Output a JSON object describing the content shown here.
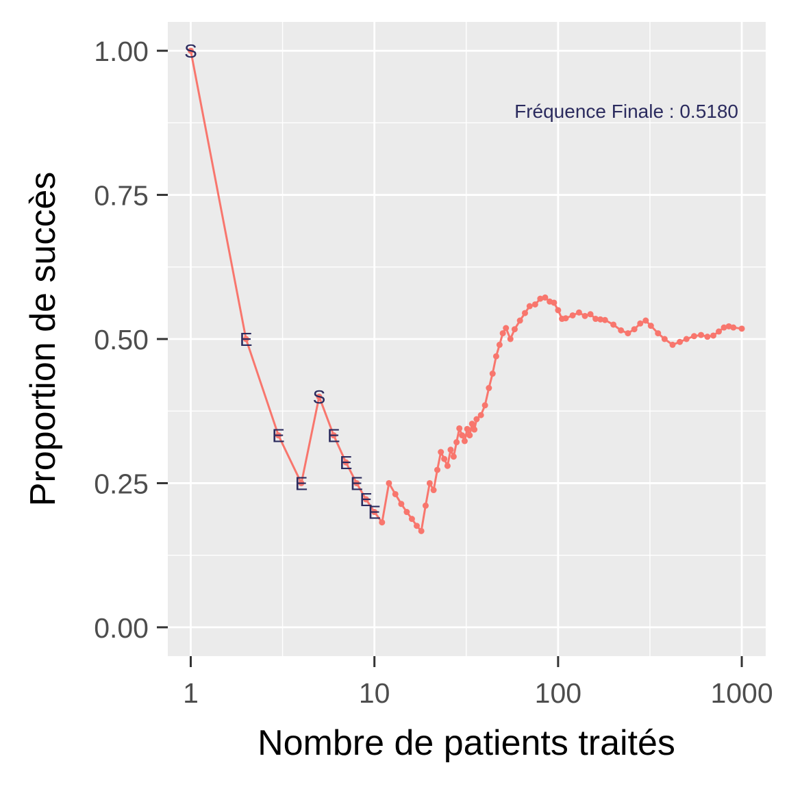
{
  "chart_data": {
    "type": "line",
    "xlabel": "Nombre de patients traités",
    "ylabel": "Proportion de succès",
    "x_scale": "log10",
    "xlim": [
      0.75,
      1350
    ],
    "ylim": [
      -0.05,
      1.05
    ],
    "x_ticks": [
      1,
      10,
      100,
      1000
    ],
    "x_tick_labels": [
      "1",
      "10",
      "100",
      "1000"
    ],
    "y_ticks": [
      0,
      0.25,
      0.5,
      0.75,
      1.0
    ],
    "y_tick_labels": [
      "0.00",
      "0.25",
      "0.50",
      "0.75",
      "1.00"
    ],
    "grid": true,
    "annotation": "Fréquence Finale :  0.5180",
    "series": [
      {
        "color": "#F8766D",
        "points": [
          [
            1,
            1.0
          ],
          [
            2,
            0.5
          ],
          [
            3,
            0.333
          ],
          [
            4,
            0.25
          ],
          [
            5,
            0.4
          ],
          [
            6,
            0.333
          ],
          [
            7,
            0.286
          ],
          [
            8,
            0.25
          ],
          [
            9,
            0.222
          ],
          [
            10,
            0.2
          ],
          [
            11,
            0.182
          ],
          [
            12,
            0.25
          ],
          [
            13,
            0.231
          ],
          [
            14,
            0.214
          ],
          [
            15,
            0.2
          ],
          [
            16,
            0.188
          ],
          [
            17,
            0.176
          ],
          [
            18,
            0.167
          ],
          [
            19,
            0.211
          ],
          [
            20,
            0.25
          ],
          [
            21,
            0.238
          ],
          [
            22,
            0.273
          ],
          [
            23,
            0.304
          ],
          [
            24,
            0.292
          ],
          [
            25,
            0.28
          ],
          [
            26,
            0.308
          ],
          [
            27,
            0.296
          ],
          [
            28,
            0.321
          ],
          [
            29,
            0.345
          ],
          [
            30,
            0.333
          ],
          [
            31,
            0.323
          ],
          [
            32,
            0.344
          ],
          [
            33,
            0.333
          ],
          [
            34,
            0.353
          ],
          [
            35,
            0.343
          ],
          [
            36,
            0.361
          ],
          [
            38,
            0.368
          ],
          [
            40,
            0.385
          ],
          [
            42,
            0.415
          ],
          [
            44,
            0.44
          ],
          [
            46,
            0.47
          ],
          [
            48,
            0.49
          ],
          [
            50,
            0.51
          ],
          [
            52,
            0.519
          ],
          [
            55,
            0.5
          ],
          [
            58,
            0.517
          ],
          [
            62,
            0.532
          ],
          [
            66,
            0.545
          ],
          [
            70,
            0.557
          ],
          [
            75,
            0.56
          ],
          [
            80,
            0.57
          ],
          [
            85,
            0.572
          ],
          [
            90,
            0.565
          ],
          [
            95,
            0.563
          ],
          [
            100,
            0.55
          ],
          [
            105,
            0.535
          ],
          [
            110,
            0.536
          ],
          [
            120,
            0.541
          ],
          [
            130,
            0.546
          ],
          [
            140,
            0.54
          ],
          [
            150,
            0.543
          ],
          [
            160,
            0.535
          ],
          [
            170,
            0.534
          ],
          [
            180,
            0.533
          ],
          [
            200,
            0.525
          ],
          [
            220,
            0.515
          ],
          [
            240,
            0.51
          ],
          [
            260,
            0.517
          ],
          [
            280,
            0.527
          ],
          [
            300,
            0.532
          ],
          [
            320,
            0.523
          ],
          [
            350,
            0.51
          ],
          [
            380,
            0.5
          ],
          [
            420,
            0.49
          ],
          [
            460,
            0.495
          ],
          [
            500,
            0.5
          ],
          [
            550,
            0.505
          ],
          [
            600,
            0.507
          ],
          [
            650,
            0.504
          ],
          [
            700,
            0.506
          ],
          [
            750,
            0.513
          ],
          [
            800,
            0.52
          ],
          [
            850,
            0.522
          ],
          [
            900,
            0.52
          ],
          [
            1000,
            0.518
          ]
        ]
      }
    ],
    "point_labels": [
      {
        "x": 1,
        "y": 1.0,
        "text": "S"
      },
      {
        "x": 2,
        "y": 0.5,
        "text": "E"
      },
      {
        "x": 3,
        "y": 0.333,
        "text": "E"
      },
      {
        "x": 4,
        "y": 0.25,
        "text": "E"
      },
      {
        "x": 5,
        "y": 0.4,
        "text": "S"
      },
      {
        "x": 6,
        "y": 0.333,
        "text": "E"
      },
      {
        "x": 7,
        "y": 0.286,
        "text": "E"
      },
      {
        "x": 8,
        "y": 0.25,
        "text": "E"
      },
      {
        "x": 9,
        "y": 0.222,
        "text": "E"
      },
      {
        "x": 10,
        "y": 0.2,
        "text": "E"
      }
    ],
    "colors": {
      "panel": "#EBEBEB",
      "grid": "#FFFFFF",
      "line": "#F8766D",
      "label": "#2B2B5E",
      "tick": "#333333"
    }
  }
}
